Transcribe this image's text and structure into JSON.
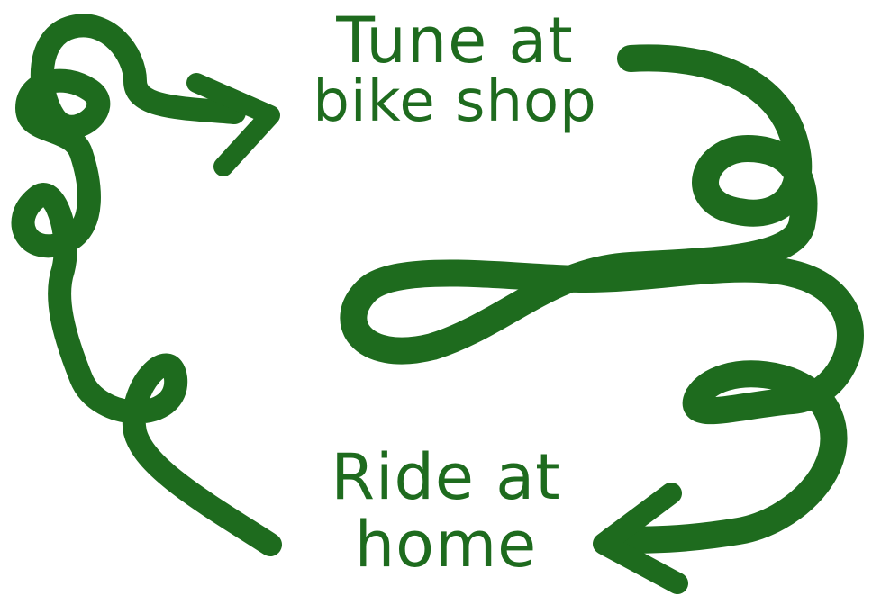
{
  "colors": {
    "ribbon": "#1e6b1e",
    "text": "#1e6b1e",
    "background": "#ffffff"
  },
  "labels": {
    "top": {
      "line1": "Tune at",
      "line2": "bike shop"
    },
    "bottom": {
      "line1": "Ride at",
      "line2": "home"
    }
  }
}
